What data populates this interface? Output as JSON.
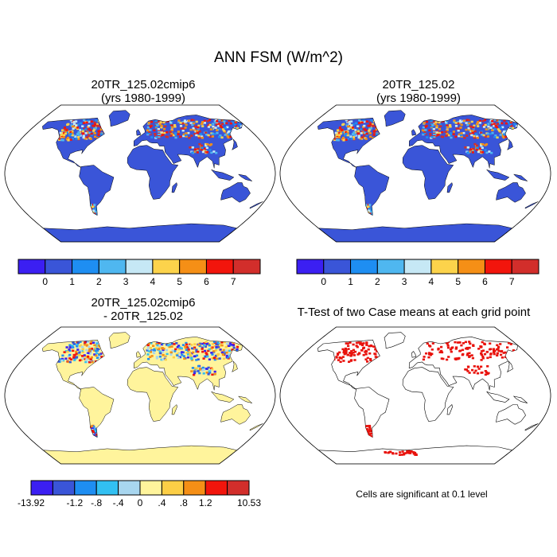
{
  "title": "ANN FSM (W/m^2)",
  "panels": {
    "p1": {
      "line1": "20TR_125.02cmip6",
      "line2": "(yrs 1980-1999)"
    },
    "p2": {
      "line1": "20TR_125.02",
      "line2": "(yrs 1980-1999)"
    },
    "p3": {
      "line1": "20TR_125.02cmip6",
      "line2": "- 20TR_125.02"
    },
    "p4": {
      "line1": "T-Test of two Case means at each grid point"
    }
  },
  "colorbar_abs": {
    "colors": [
      "#3b1ff2",
      "#3a55d8",
      "#1e8ef2",
      "#4fb7f0",
      "#c6e8f5",
      "#fcd34b",
      "#f58f16",
      "#f2150c",
      "#d22e2b"
    ],
    "labels": [
      "0",
      "1",
      "2",
      "3",
      "4",
      "5",
      "6",
      "7"
    ]
  },
  "colorbar_diff": {
    "colors": [
      "#3b1ff2",
      "#3a55d8",
      "#1e8ef2",
      "#32c0f2",
      "#a8d6ef",
      "#fff49c",
      "#fcce46",
      "#f58f16",
      "#f2150c",
      "#d22e2b"
    ],
    "labels": [
      "-13.92",
      "-1.2",
      "-.8",
      "-.4",
      "0",
      ".4",
      ".8",
      "1.2",
      "10.53"
    ]
  },
  "significance_note": "Cells are significant at 0.1 level",
  "colors": {
    "ocean": "#ffffff",
    "land_base_abs": "#3a55d8",
    "land_base_diff": "#fff49c",
    "significant": "#e8120c"
  }
}
